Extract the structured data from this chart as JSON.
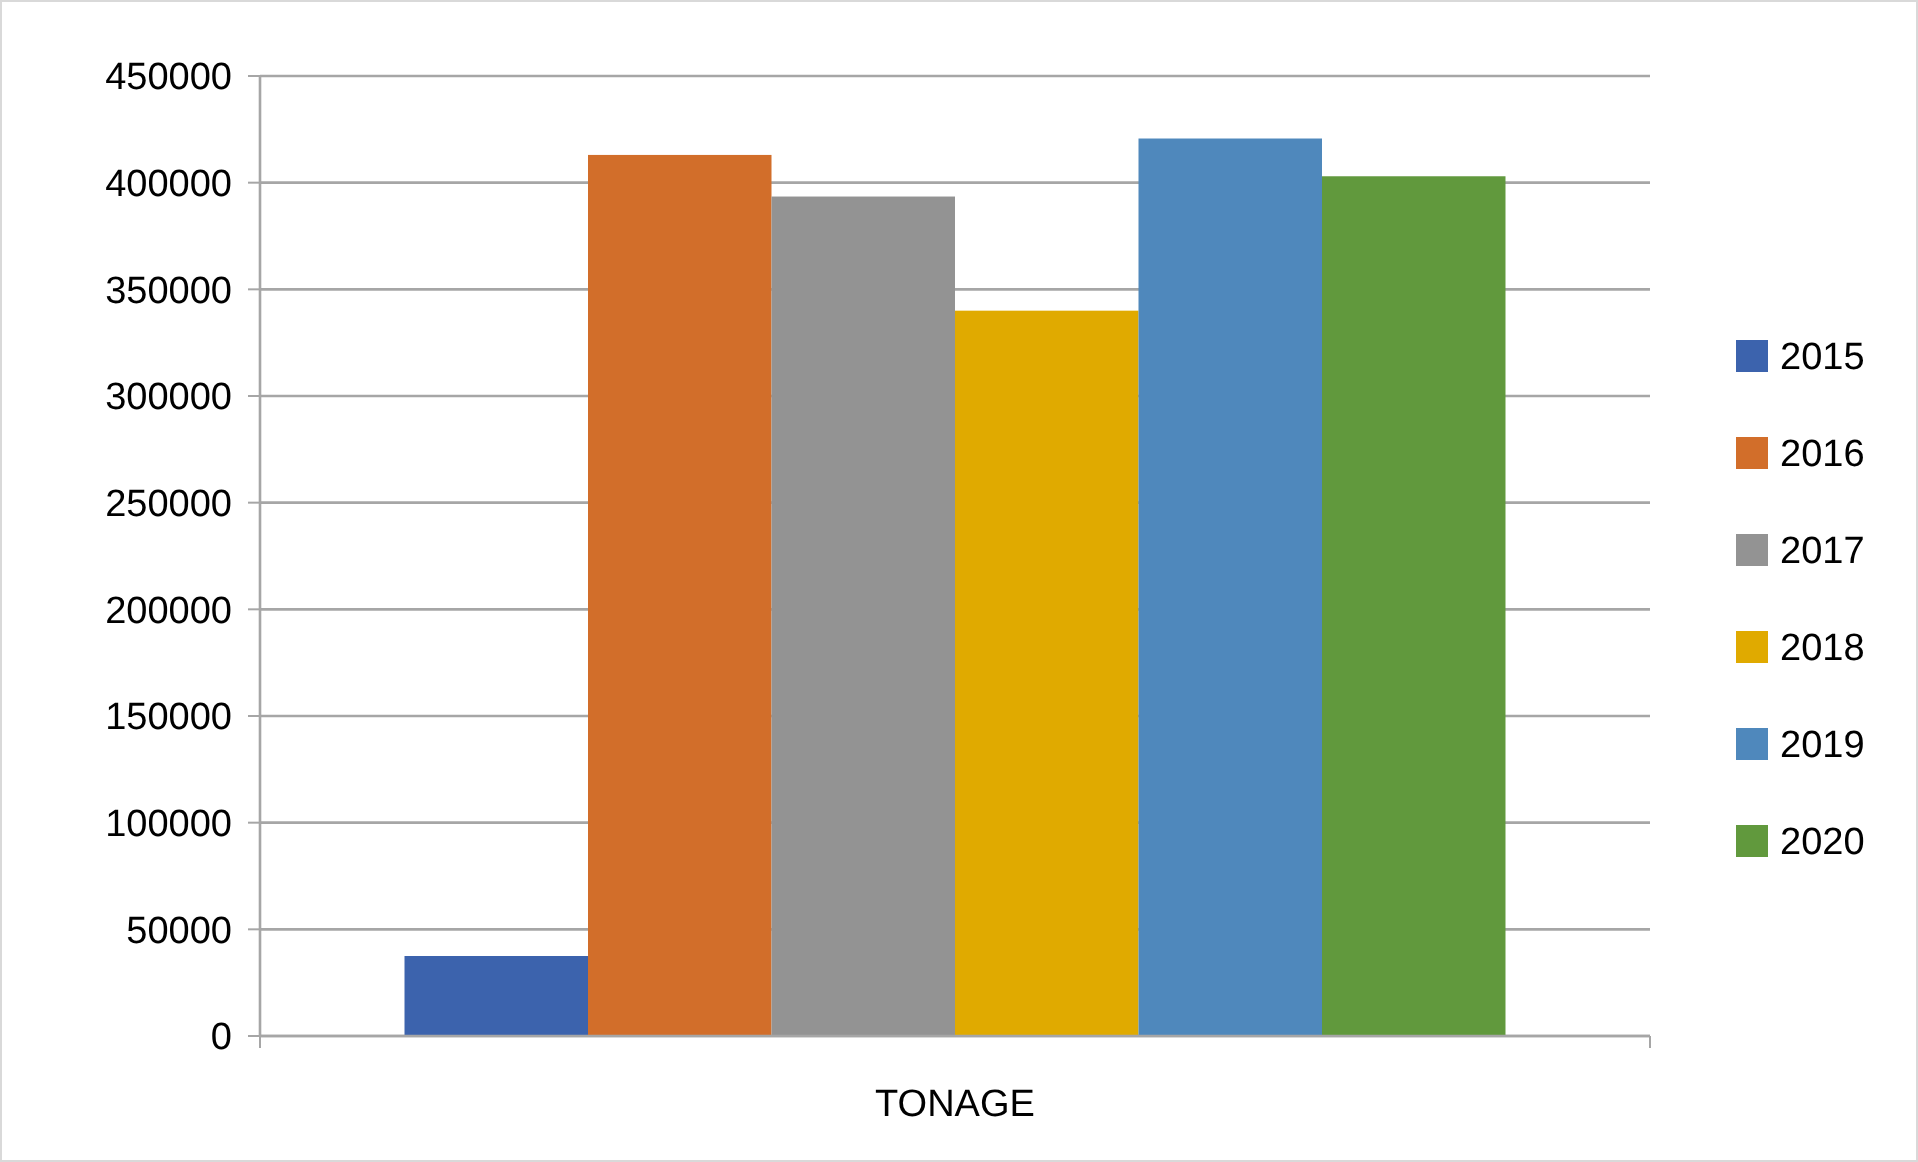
{
  "chart_data": {
    "type": "bar",
    "categories": [
      "TONAGE"
    ],
    "series": [
      {
        "name": "2015",
        "color": "#3c63ad",
        "values": [
          37500
        ]
      },
      {
        "name": "2016",
        "color": "#d26e2a",
        "values": [
          413000
        ]
      },
      {
        "name": "2017",
        "color": "#939393",
        "values": [
          393500
        ]
      },
      {
        "name": "2018",
        "color": "#e0aa00",
        "values": [
          340000
        ]
      },
      {
        "name": "2019",
        "color": "#4f88bc",
        "values": [
          420700
        ]
      },
      {
        "name": "2020",
        "color": "#61993d",
        "values": [
          403000
        ]
      }
    ],
    "ylim": [
      0,
      450000
    ],
    "yticks": [
      0,
      50000,
      100000,
      150000,
      200000,
      250000,
      300000,
      350000,
      400000,
      450000
    ],
    "grid": "y",
    "legend": "right"
  }
}
